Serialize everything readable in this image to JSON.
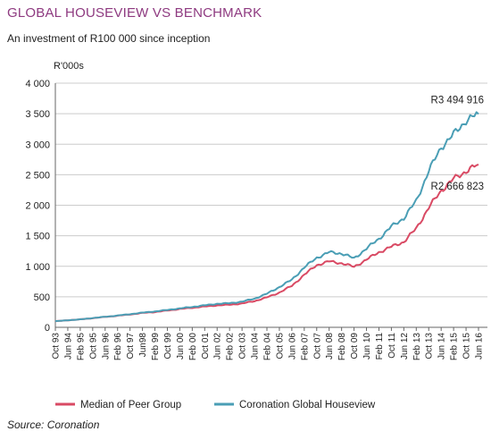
{
  "header": {
    "title": "GLOBAL HOUSEVIEW VS BENCHMARK",
    "subtitle": "An investment of R100 000 since inception"
  },
  "footer": {
    "source": "Source: Coronation"
  },
  "colors": {
    "title": "#8e3a80",
    "houseview": "#4a9eb5",
    "peer": "#d94a64",
    "grid": "#cccccc",
    "axis": "#666666"
  },
  "chart_data": {
    "type": "line",
    "ylabel": "R'000s",
    "ylim": [
      0,
      4000
    ],
    "yticks": [
      0,
      500,
      1000,
      1500,
      2000,
      2500,
      3000,
      3500,
      4000
    ],
    "ytick_labels": [
      "0",
      "500",
      "1 000",
      "1 500",
      "2 000",
      "2 500",
      "3 000",
      "3 500",
      "4 000"
    ],
    "grid": true,
    "legend": "bottom",
    "x_categories": [
      "Oct 93",
      "Jun 94",
      "Feb 95",
      "Oct 95",
      "Jun 96",
      "Feb 96",
      "Oct 97",
      "Jun98",
      "Feb 99",
      "Oct 99",
      "Jun 00",
      "Feb 00",
      "Oct 01",
      "Jun 02",
      "Feb 02",
      "Oct 03",
      "Jun 04",
      "Feb 04",
      "Oct 05",
      "Jun 06",
      "Feb 07",
      "Oct 07",
      "Jun 08",
      "Feb 08",
      "Oct 09",
      "Jun 10",
      "Feb 11",
      "Oct 11",
      "Jun 12",
      "Feb 13",
      "Oct 13",
      "Jun 14",
      "Feb 15",
      "Oct 15",
      "Jun 16"
    ],
    "series": [
      {
        "name": "Median of Peer Group",
        "color": "#d94a64",
        "end_label": "R2 666 823",
        "values": [
          100,
          115,
          130,
          150,
          170,
          190,
          210,
          235,
          250,
          275,
          300,
          320,
          340,
          360,
          370,
          390,
          430,
          490,
          570,
          680,
          860,
          1020,
          1080,
          1050,
          990,
          1110,
          1230,
          1320,
          1400,
          1620,
          1960,
          2240,
          2430,
          2560,
          2667
        ]
      },
      {
        "name": "Coronation Global Houseview",
        "color": "#4a9eb5",
        "end_label": "R3 494 916",
        "values": [
          100,
          115,
          130,
          152,
          172,
          193,
          215,
          240,
          260,
          285,
          310,
          335,
          360,
          385,
          395,
          420,
          470,
          550,
          660,
          780,
          980,
          1140,
          1230,
          1210,
          1130,
          1290,
          1450,
          1650,
          1790,
          2070,
          2560,
          2950,
          3160,
          3390,
          3495
        ]
      }
    ]
  }
}
